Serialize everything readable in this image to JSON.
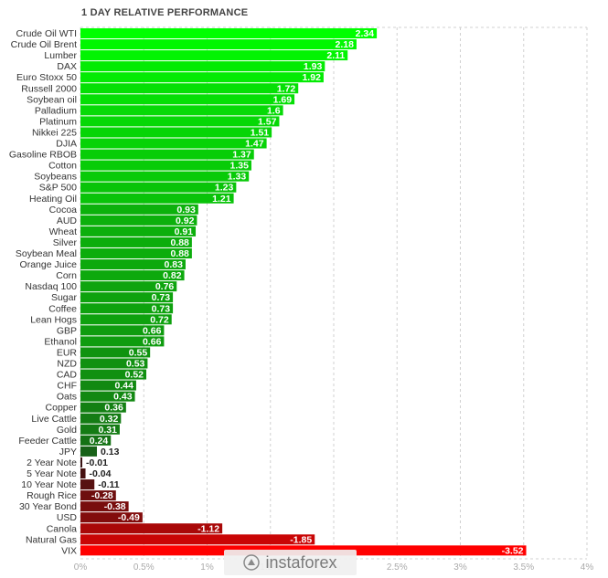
{
  "title": "1 DAY RELATIVE PERFORMANCE",
  "watermark": "instaforex",
  "chart_data": {
    "type": "bar",
    "orientation": "horizontal",
    "title": "1 DAY RELATIVE PERFORMANCE",
    "xlim": [
      0,
      4
    ],
    "x_ticks": [
      {
        "value": 0,
        "label": "0%"
      },
      {
        "value": 0.5,
        "label": "0.5%"
      },
      {
        "value": 1,
        "label": "1%"
      },
      {
        "value": 1.5,
        "label": "1.5%"
      },
      {
        "value": 2,
        "label": "2%"
      },
      {
        "value": 2.5,
        "label": "2.5%"
      },
      {
        "value": 3,
        "label": "3%"
      },
      {
        "value": 3.5,
        "label": "3.5%"
      },
      {
        "value": 4,
        "label": "4%"
      }
    ],
    "grid": true,
    "categories": [
      "Crude Oil WTI",
      "Crude Oil Brent",
      "Lumber",
      "DAX",
      "Euro Stoxx 50",
      "Russell 2000",
      "Soybean oil",
      "Palladium",
      "Platinum",
      "Nikkei 225",
      "DJIA",
      "Gasoline RBOB",
      "Cotton",
      "Soybeans",
      "S&P 500",
      "Heating Oil",
      "Cocoa",
      "AUD",
      "Wheat",
      "Silver",
      "Soybean Meal",
      "Orange Juice",
      "Corn",
      "Nasdaq 100",
      "Sugar",
      "Coffee",
      "Lean Hogs",
      "GBP",
      "Ethanol",
      "EUR",
      "NZD",
      "CAD",
      "CHF",
      "Oats",
      "Copper",
      "Live Cattle",
      "Gold",
      "Feeder Cattle",
      "JPY",
      "2 Year Note",
      "5 Year Note",
      "10 Year Note",
      "Rough Rice",
      "30 Year Bond",
      "USD",
      "Canola",
      "Natural Gas",
      "VIX"
    ],
    "values": [
      2.34,
      2.18,
      2.11,
      1.93,
      1.92,
      1.72,
      1.69,
      1.6,
      1.57,
      1.51,
      1.47,
      1.37,
      1.35,
      1.33,
      1.23,
      1.21,
      0.93,
      0.92,
      0.91,
      0.88,
      0.88,
      0.83,
      0.82,
      0.76,
      0.73,
      0.73,
      0.72,
      0.66,
      0.66,
      0.55,
      0.53,
      0.52,
      0.44,
      0.43,
      0.36,
      0.32,
      0.31,
      0.24,
      0.13,
      -0.01,
      -0.04,
      -0.11,
      -0.28,
      -0.38,
      -0.49,
      -1.12,
      -1.85,
      -3.52
    ],
    "value_labels": [
      "2.34",
      "2.18",
      "2.11",
      "1.93",
      "1.92",
      "1.72",
      "1.69",
      "1.6",
      "1.57",
      "1.51",
      "1.47",
      "1.37",
      "1.35",
      "1.33",
      "1.23",
      "1.21",
      "0.93",
      "0.92",
      "0.91",
      "0.88",
      "0.88",
      "0.83",
      "0.82",
      "0.76",
      "0.73",
      "0.73",
      "0.72",
      "0.66",
      "0.66",
      "0.55",
      "0.53",
      "0.52",
      "0.44",
      "0.43",
      "0.36",
      "0.32",
      "0.31",
      "0.24",
      "0.13",
      "-0.01",
      "-0.04",
      "-0.11",
      "-0.28",
      "-0.38",
      "-0.49",
      "-1.12",
      "-1.85",
      "-3.52"
    ],
    "bar_length": "absolute value",
    "colors": {
      "positive_high": "#00ff00",
      "positive_low": "#1e3a1e",
      "negative_low": "#2a1515",
      "negative_high": "#ff0000"
    }
  }
}
